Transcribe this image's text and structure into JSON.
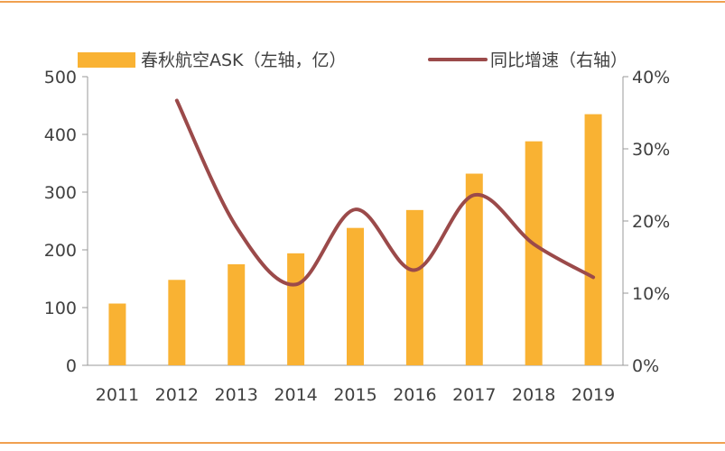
{
  "colors": {
    "bar": "#F9B233",
    "line": "#9B4A4A",
    "axis": "#9a9a9a",
    "rule": "#F0A050",
    "text": "#404040"
  },
  "chart_data": {
    "type": "bar",
    "categories": [
      "2011",
      "2012",
      "2013",
      "2014",
      "2015",
      "2016",
      "2017",
      "2018",
      "2019"
    ],
    "series": [
      {
        "name": "春秋航空ASK（左轴，亿）",
        "type": "bar",
        "axis": "left",
        "values": [
          107,
          148,
          175,
          194,
          238,
          269,
          332,
          388,
          435
        ]
      },
      {
        "name": "同比增速（右轴）",
        "type": "line",
        "axis": "right",
        "values": [
          null,
          36.7,
          19.2,
          11.2,
          21.6,
          13.2,
          23.6,
          16.8,
          12.2
        ]
      }
    ],
    "y_left": {
      "range": [
        0,
        500
      ],
      "ticks": [
        "0",
        "100",
        "200",
        "300",
        "400",
        "500"
      ]
    },
    "y_right": {
      "range": [
        0,
        40
      ],
      "ticks": [
        "0%",
        "10%",
        "20%",
        "30%",
        "40%"
      ]
    },
    "legend_position": "top",
    "grid": false
  }
}
